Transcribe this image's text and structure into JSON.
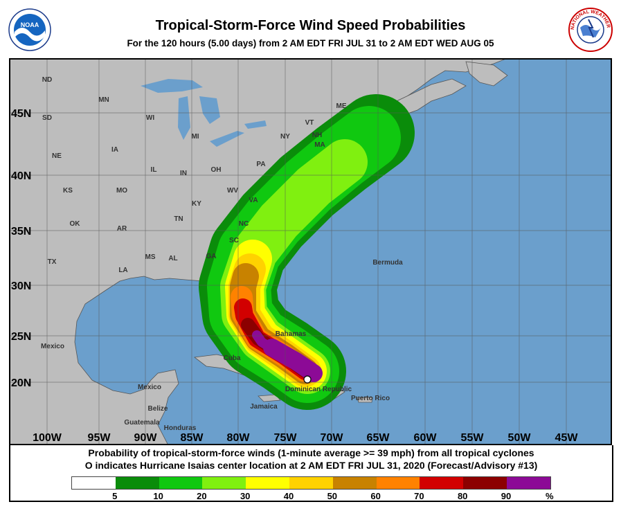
{
  "header": {
    "title": "Tropical-Storm-Force Wind Speed Probabilities",
    "subtitle": "For the 120 hours (5.00 days) from 2 AM EDT FRI JUL 31 to 2 AM EDT WED AUG 05",
    "left_logo": "NOAA",
    "right_logo": "NATIONAL WEATHER SERVICE"
  },
  "map": {
    "colors": {
      "ocean": "#6b9fcc",
      "land": "#bdbdbd",
      "border": "#333333"
    },
    "longitude_labels": [
      "100W",
      "95W",
      "90W",
      "85W",
      "80W",
      "75W",
      "70W",
      "65W",
      "60W",
      "55W",
      "50W",
      "45W"
    ],
    "latitude_labels": [
      "45N",
      "40N",
      "35N",
      "30N",
      "25N",
      "20N"
    ],
    "place_labels": [
      "ND",
      "MN",
      "SD",
      "WI",
      "MI",
      "NE",
      "IA",
      "IL",
      "IN",
      "OH",
      "PA",
      "NY",
      "VT",
      "NH",
      "ME",
      "MA",
      "KS",
      "MO",
      "KY",
      "WV",
      "VA",
      "TN",
      "NC",
      "SC",
      "OK",
      "AR",
      "TX",
      "LA",
      "MS",
      "AL",
      "GA",
      "Mexico",
      "Mexico",
      "Cuba",
      "Bahamas",
      "Jamaica",
      "Dominican Republic",
      "Puerto Rico",
      "Belize",
      "Guatemala",
      "Honduras",
      "Bermuda"
    ],
    "storm_center_marker": "white-circle"
  },
  "legend": {
    "line1": "Probability of tropical-storm-force winds (1-minute average >= 39 mph) from all tropical cyclones",
    "line2": "O indicates Hurricane Isaias center location at 2 AM EDT FRI JUL 31, 2020 (Forecast/Advisory #13)",
    "bins": [
      {
        "color": "#ffffff"
      },
      {
        "color": "#0a8c0a"
      },
      {
        "color": "#10c810"
      },
      {
        "color": "#80f010"
      },
      {
        "color": "#ffff00"
      },
      {
        "color": "#ffd200"
      },
      {
        "color": "#c88200"
      },
      {
        "color": "#ff8200"
      },
      {
        "color": "#d20000"
      },
      {
        "color": "#8c0000"
      },
      {
        "color": "#8c0a96"
      }
    ],
    "ticks": [
      "5",
      "10",
      "20",
      "30",
      "40",
      "50",
      "60",
      "70",
      "80",
      "90",
      "%"
    ]
  }
}
